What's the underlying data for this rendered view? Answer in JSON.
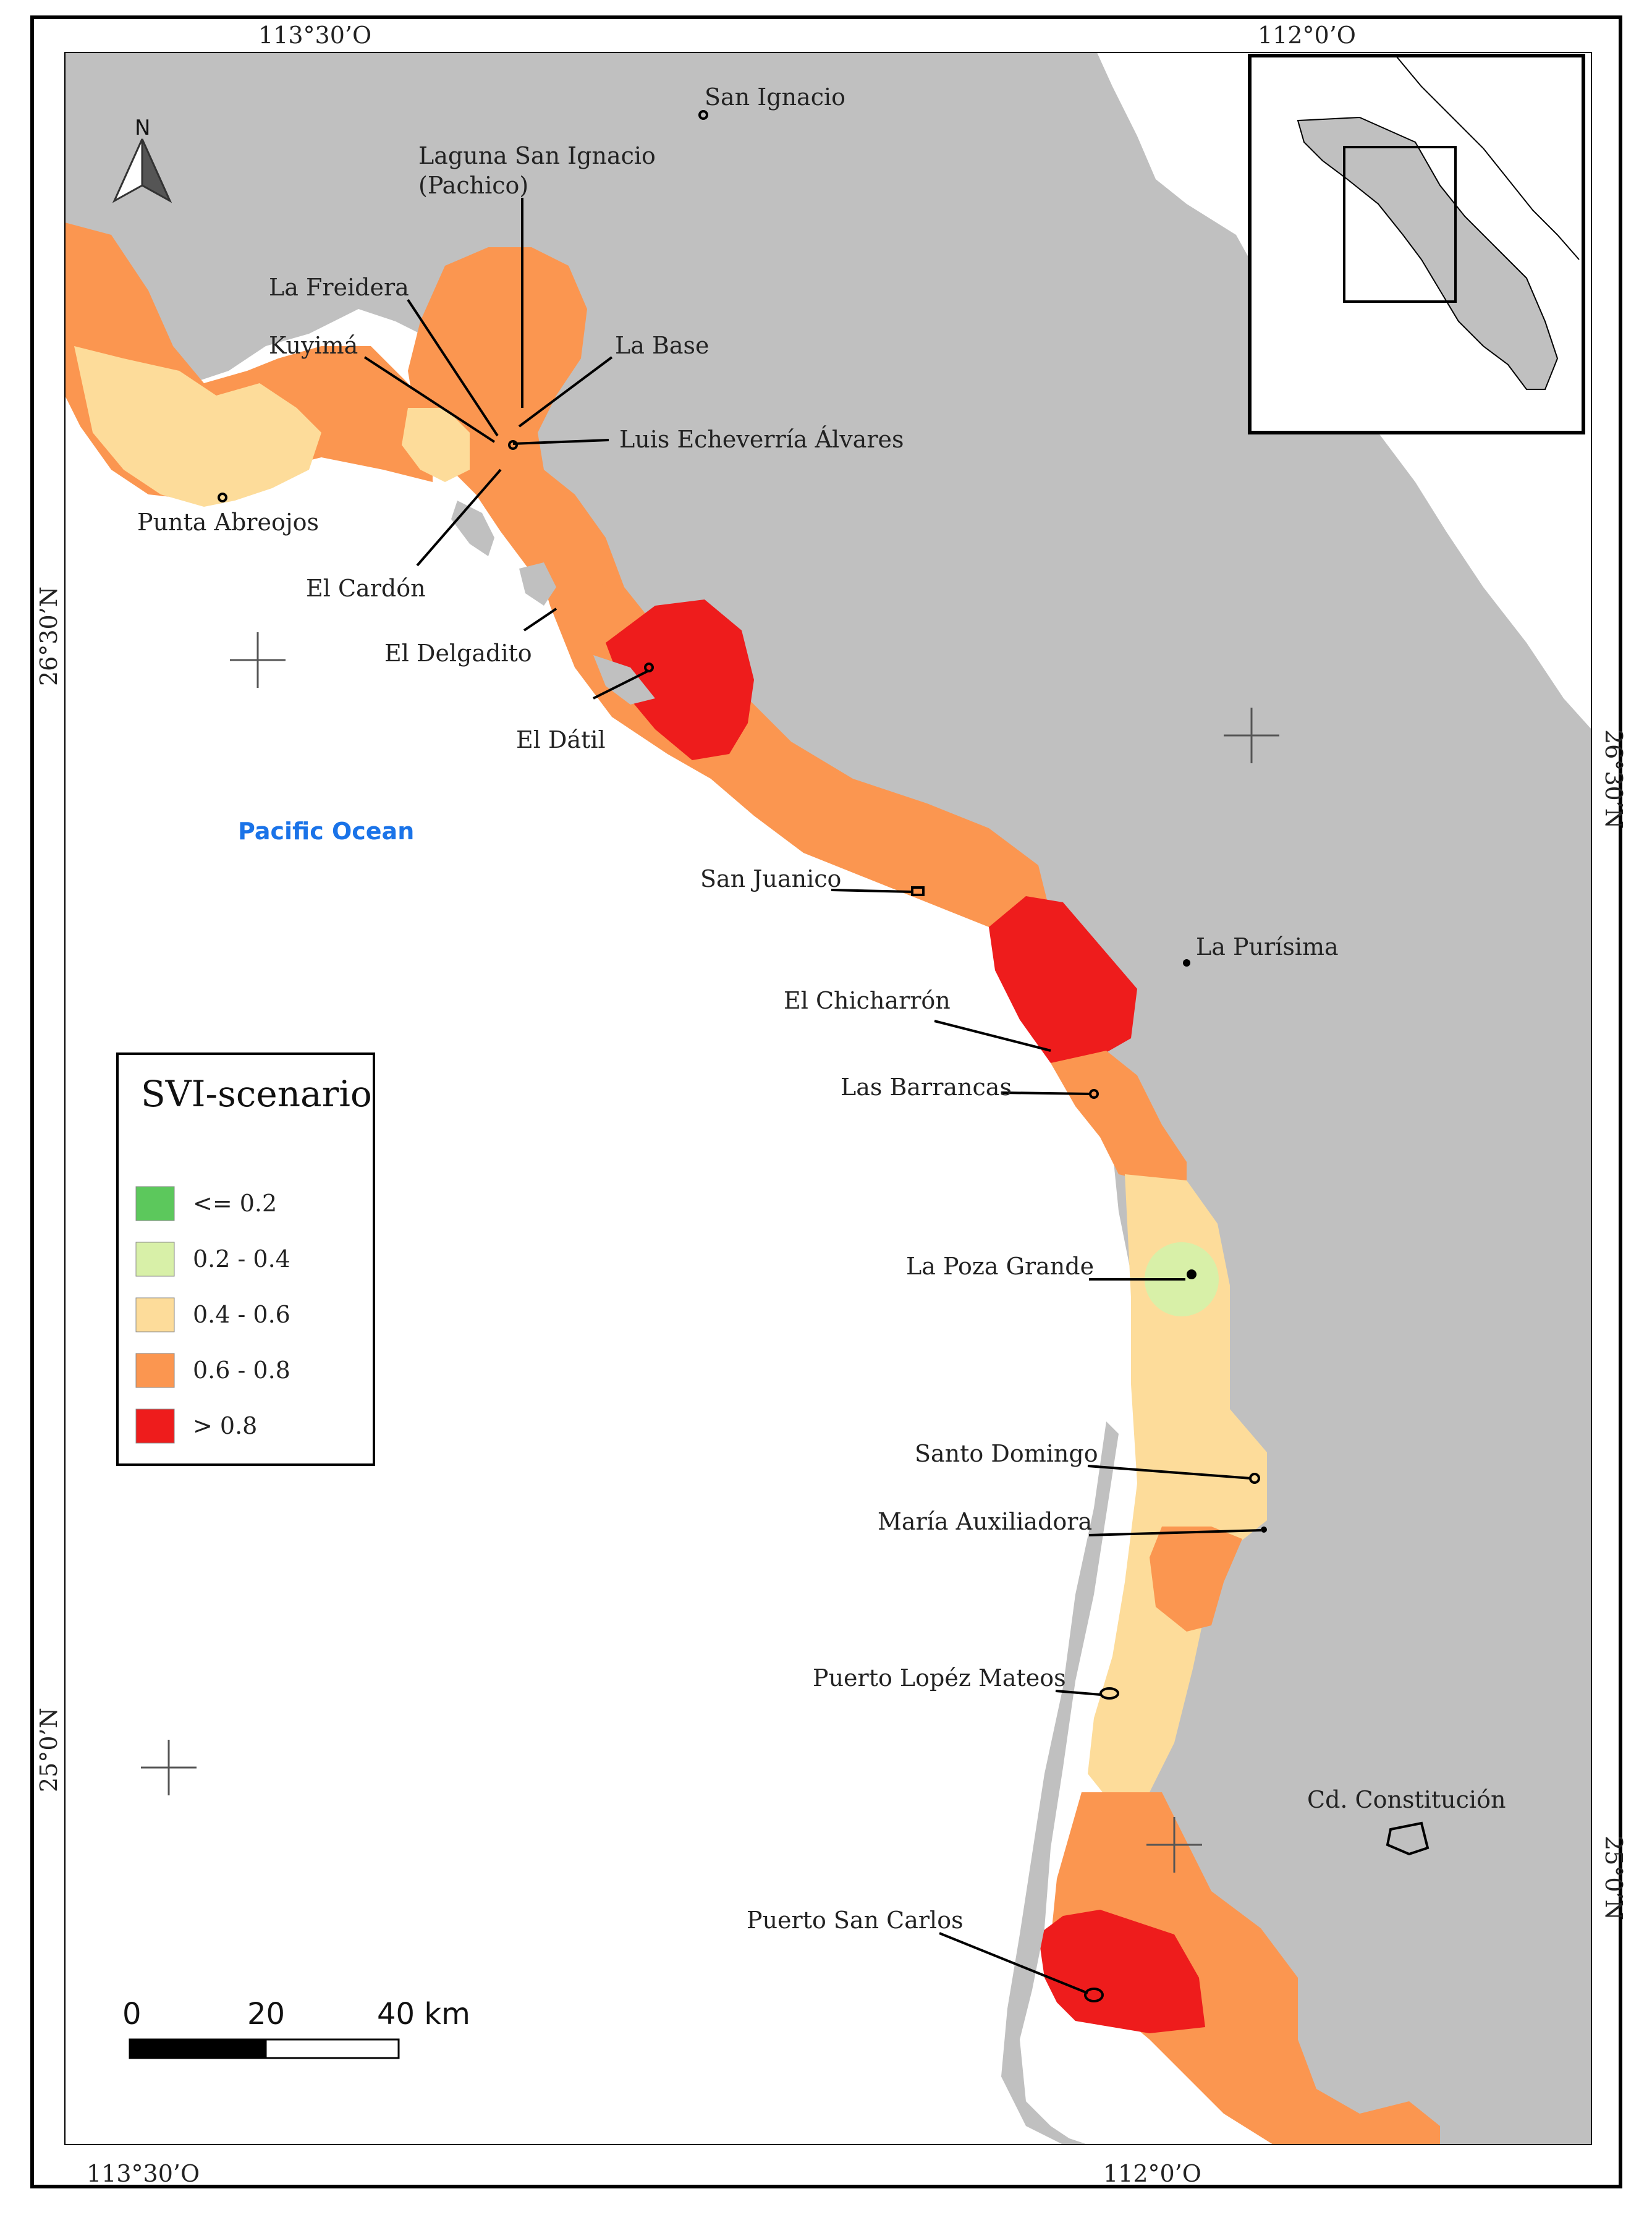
{
  "graticule": {
    "top_left": "113°30’O",
    "top_right": "112°0’O",
    "bottom_left": "113°30’O",
    "bottom_right": "112°0’O",
    "left_upper": "26°30’N",
    "left_lower": "25°0’N",
    "right_upper": "26°30’N",
    "right_lower": "25°0’N"
  },
  "north_arrow": {
    "label": "N"
  },
  "ocean_label": "Pacific Ocean",
  "places": {
    "san_ignacio": "San Ignacio",
    "laguna_line1": "Laguna San Ignacio",
    "laguna_line2": "(Pachico)",
    "la_freidera": "La Freidera",
    "kuyima": "Kuyimá",
    "la_base": "La Base",
    "luis": "Luis Echeverría Álvares",
    "punta_abreojos": "Punta Abreojos",
    "el_cardon": "El Cardón",
    "el_delgadito": "El Delgadito",
    "el_datil": "El Dátil",
    "san_juanico": "San Juanico",
    "la_purisima": "La Purísima",
    "el_chicharron": "El Chicharrón",
    "las_barrancas": "Las Barrancas",
    "la_poza_grande": "La Poza Grande",
    "santo_domingo": "Santo Domingo",
    "maria_auxiliadora": "María Auxiliadora",
    "puerto_lopez_mateos": "Puerto Lopéz Mateos",
    "cd_constitucion": "Cd. Constitución",
    "puerto_san_carlos": "Puerto San Carlos"
  },
  "legend": {
    "title": "SVI-scenario",
    "items": [
      {
        "label": "<= 0.2",
        "color": "#5cc85c"
      },
      {
        "label": "0.2 - 0.4",
        "color": "#d8f0a8"
      },
      {
        "label": "0.4 - 0.6",
        "color": "#fddc9a"
      },
      {
        "label": "0.6 - 0.8",
        "color": "#fb9650"
      },
      {
        "label": "> 0.8",
        "color": "#ee1c1c"
      }
    ]
  },
  "scale_bar": {
    "label_0": "0",
    "label_20": "20",
    "label_40": "40 km"
  },
  "colors": {
    "land": "#c0c0c0",
    "water": "#ffffff",
    "svi_low": "#5cc85c",
    "svi_lowmid": "#d8f0a8",
    "svi_mid": "#fddc9a",
    "svi_high": "#fb9650",
    "svi_veryhigh": "#ee1c1c"
  }
}
